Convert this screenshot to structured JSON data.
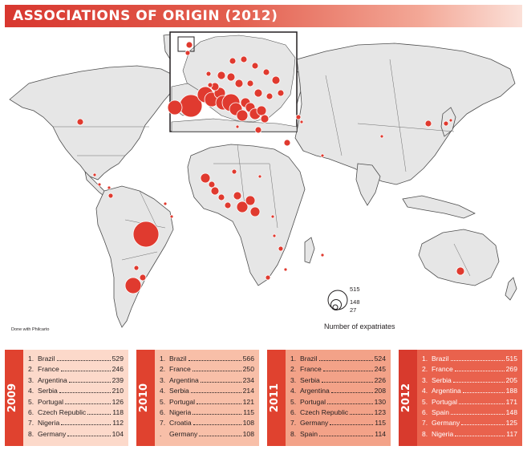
{
  "title": "ASSOCIATIONS OF ORIGIN (2012)",
  "credit": "Done with Philcarto",
  "legend": {
    "title": "Number of expatriates",
    "values": [
      "515",
      "148",
      "27"
    ]
  },
  "colors": {
    "accent": "#e03a2f",
    "land": "#e6e6e6",
    "panel_2009": "#fcd9ca",
    "panel_2010": "#f8bfa8",
    "panel_2011": "#f3a288",
    "panel_2012": "#e9624d"
  },
  "panels": [
    {
      "year": "2009",
      "items": [
        {
          "rank": "1.",
          "name": "Brazil",
          "value": "529"
        },
        {
          "rank": "2.",
          "name": "France",
          "value": "246"
        },
        {
          "rank": "3.",
          "name": "Argentina",
          "value": "239"
        },
        {
          "rank": "4.",
          "name": "Serbia",
          "value": "210"
        },
        {
          "rank": "5.",
          "name": "Portugal",
          "value": "126"
        },
        {
          "rank": "6.",
          "name": "Czech Republic",
          "value": "118"
        },
        {
          "rank": "7.",
          "name": "Nigeria",
          "value": "112"
        },
        {
          "rank": "8.",
          "name": "Germany",
          "value": "104"
        }
      ]
    },
    {
      "year": "2010",
      "items": [
        {
          "rank": "1.",
          "name": "Brazil",
          "value": "566"
        },
        {
          "rank": "2.",
          "name": "France",
          "value": "250"
        },
        {
          "rank": "3.",
          "name": "Argentina",
          "value": "234"
        },
        {
          "rank": "4.",
          "name": "Serbia",
          "value": "214"
        },
        {
          "rank": "5.",
          "name": "Portugal",
          "value": "121"
        },
        {
          "rank": "6.",
          "name": "Nigeria",
          "value": "115"
        },
        {
          "rank": "7.",
          "name": "Croatia",
          "value": "108"
        },
        {
          "rank": ".",
          "name": "Germany",
          "value": "108"
        }
      ]
    },
    {
      "year": "2011",
      "items": [
        {
          "rank": "1.",
          "name": "Brazil",
          "value": "524"
        },
        {
          "rank": "2.",
          "name": "France",
          "value": "245"
        },
        {
          "rank": "3.",
          "name": "Serbia",
          "value": "226"
        },
        {
          "rank": "4.",
          "name": "Argentina",
          "value": "208"
        },
        {
          "rank": "5.",
          "name": "Portugal",
          "value": "130"
        },
        {
          "rank": "6.",
          "name": "Czech Republic",
          "value": "123"
        },
        {
          "rank": "7.",
          "name": "Germany",
          "value": "115"
        },
        {
          "rank": "8.",
          "name": "Spain",
          "value": "114"
        }
      ]
    },
    {
      "year": "2012",
      "items": [
        {
          "rank": "1.",
          "name": "Brazil",
          "value": "515"
        },
        {
          "rank": "2.",
          "name": "France",
          "value": "269"
        },
        {
          "rank": "3.",
          "name": "Serbia",
          "value": "205"
        },
        {
          "rank": "4.",
          "name": "Argentina",
          "value": "188"
        },
        {
          "rank": "5.",
          "name": "Portugal",
          "value": "171"
        },
        {
          "rank": "6.",
          "name": "Spain",
          "value": "148"
        },
        {
          "rank": "7.",
          "name": "Germany",
          "value": "125"
        },
        {
          "rank": "8.",
          "name": "Nigeria",
          "value": "117"
        }
      ]
    }
  ]
}
